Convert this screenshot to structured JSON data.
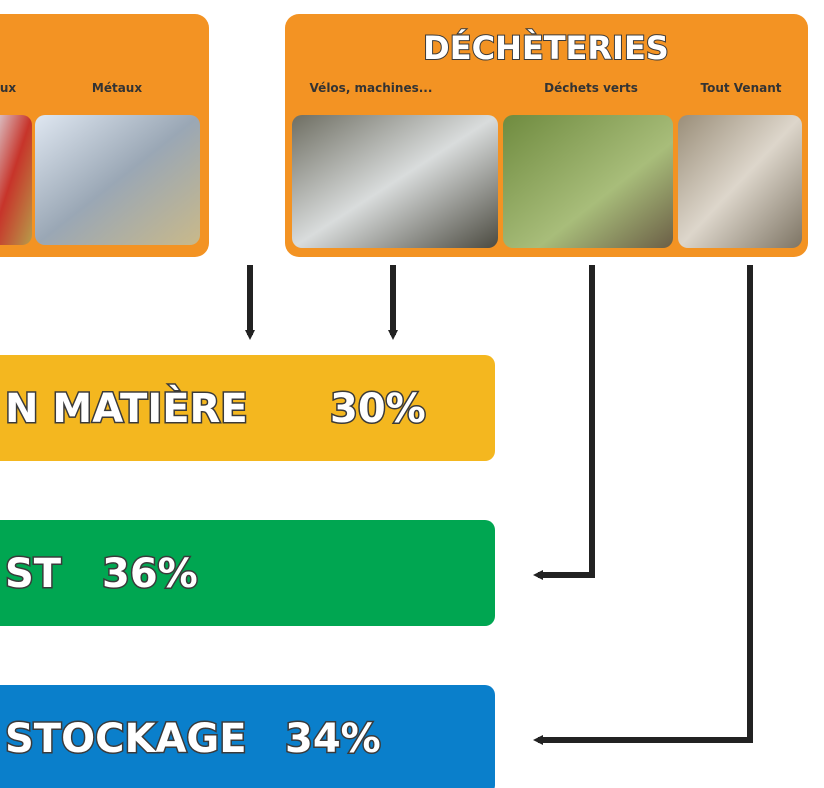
{
  "left_group": {
    "labels": [
      "ux",
      "Métaux"
    ]
  },
  "decheteries": {
    "title": "DÉCHÈTERIES",
    "labels": [
      "Vélos, machines...",
      "Déchets verts",
      "Tout Venant"
    ]
  },
  "outputs": [
    {
      "label": "N MATIÈRE",
      "share": "30%"
    },
    {
      "label": "ST",
      "share": "36%"
    },
    {
      "label": "STOCKAGE",
      "share": "34%"
    }
  ]
}
